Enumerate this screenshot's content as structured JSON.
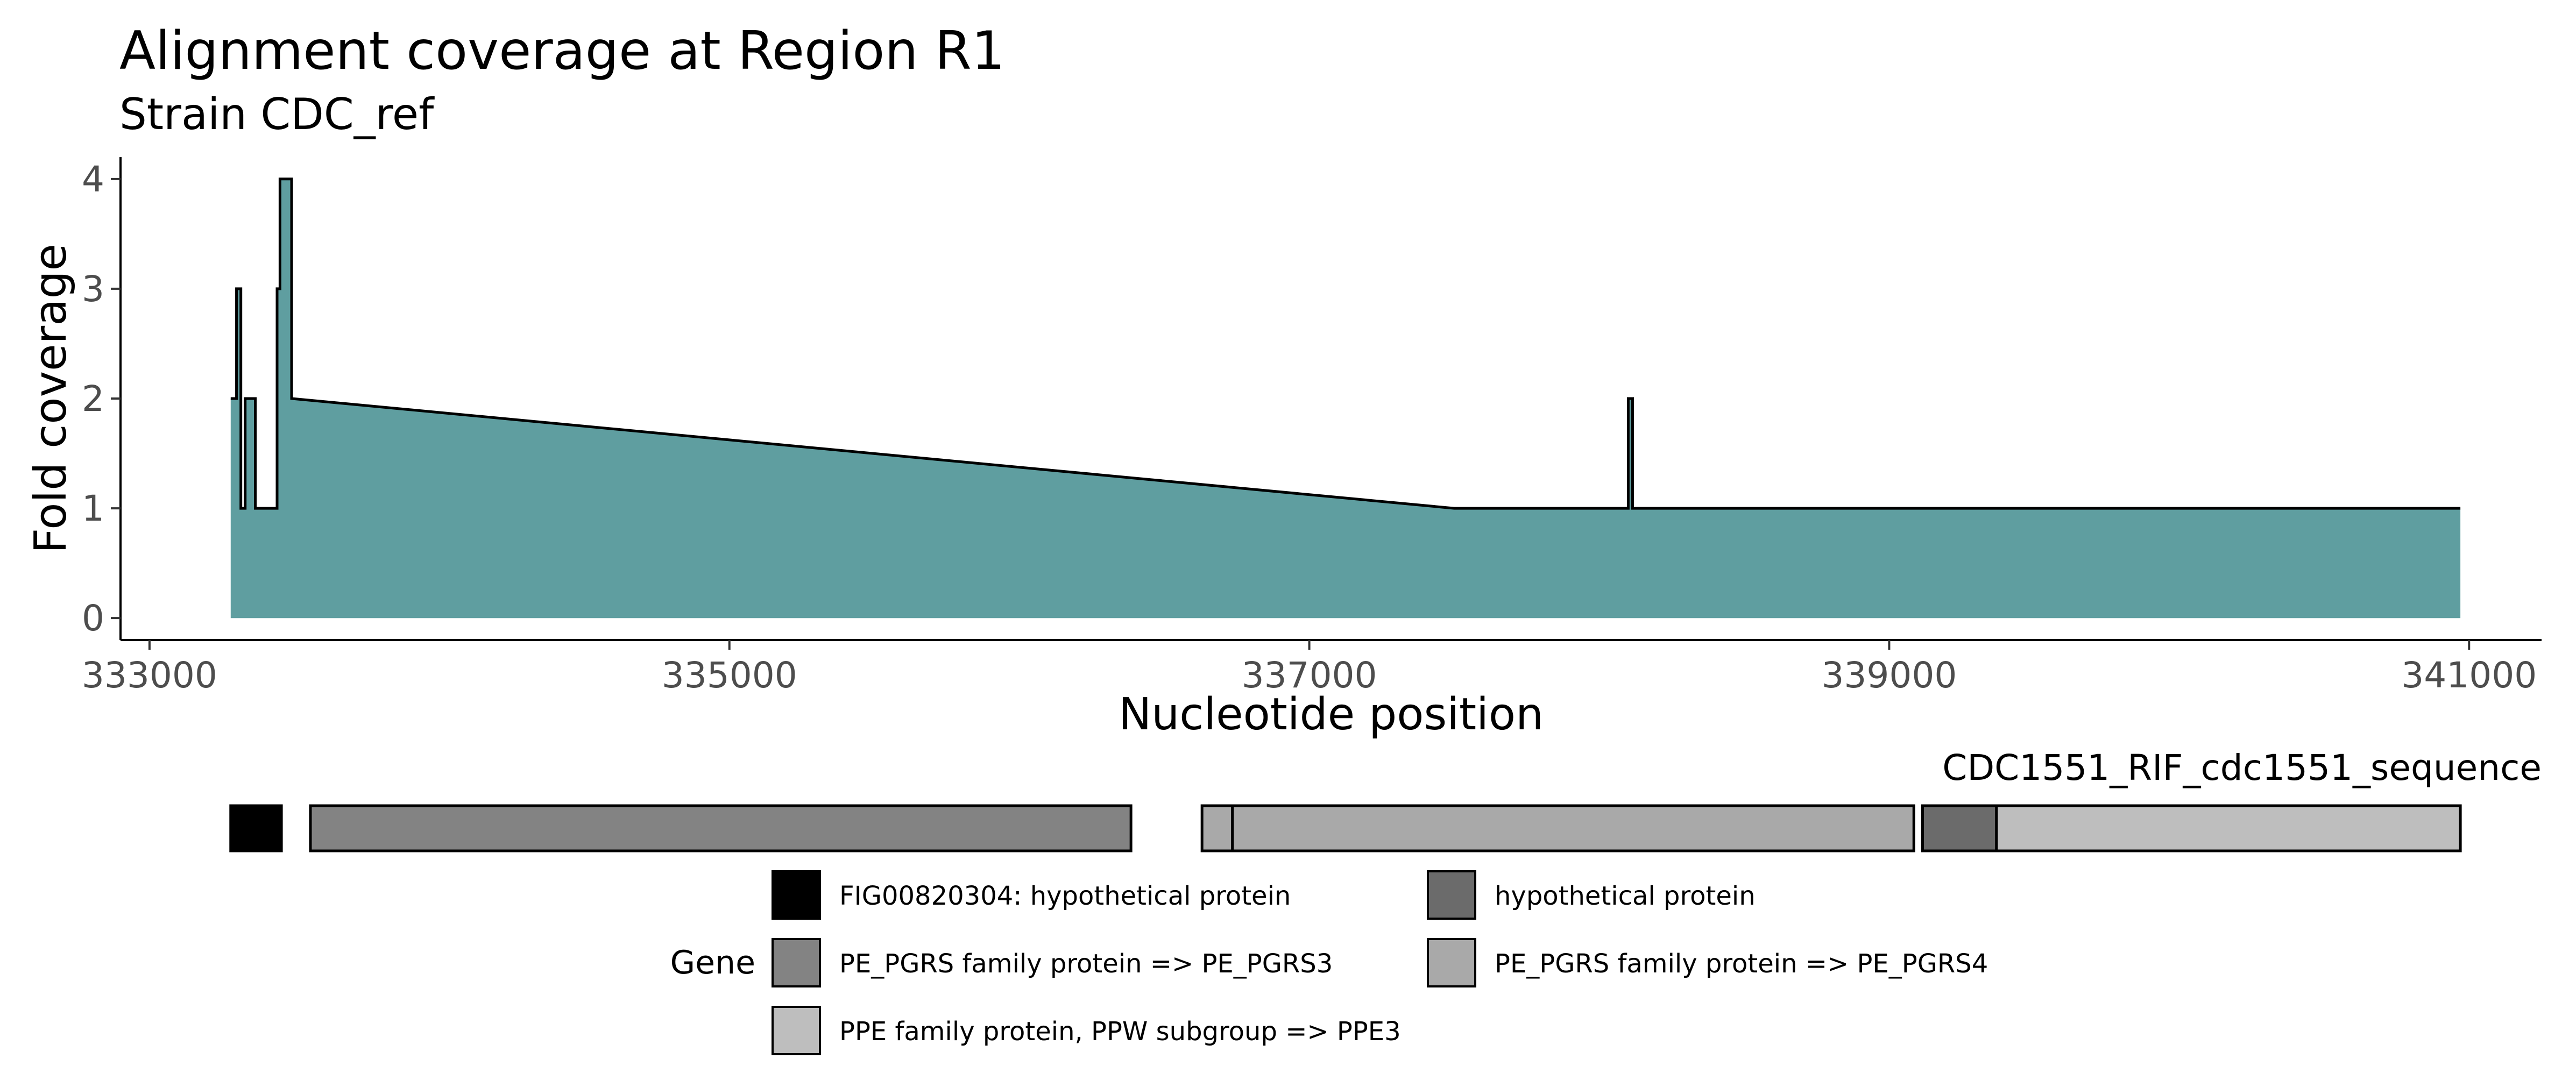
{
  "chart_data": {
    "type": "area",
    "title": "Alignment coverage at Region R1",
    "subtitle": "Strain CDC_ref",
    "xlabel": "Nucleotide position",
    "ylabel": "Fold coverage",
    "xlim": [
      332900,
      341250
    ],
    "ylim": [
      -0.2,
      4.2
    ],
    "x_ticks": [
      333000,
      335000,
      337000,
      339000,
      341000
    ],
    "y_ticks": [
      0,
      1,
      2,
      3,
      4
    ],
    "fill_color": "#5f9ea0",
    "grid": false,
    "series": [
      {
        "x": [
          333280,
          333280,
          333300,
          333300,
          333315,
          333315,
          333330,
          333330,
          333365,
          333365,
          333440,
          333440,
          333450,
          333450,
          333490,
          333490,
          337500,
          338100,
          338100,
          338115,
          338115,
          340970,
          340970
        ],
        "y": [
          0,
          2,
          2,
          3,
          3,
          1,
          1,
          2,
          2,
          1,
          1,
          3,
          3,
          4,
          4,
          2,
          1,
          1,
          2,
          2,
          1,
          1,
          0
        ]
      }
    ],
    "gene_track": {
      "label": "CDC1551_RIF_cdc1551_sequence",
      "genes": [
        {
          "start": 333280,
          "end": 333455,
          "type": "FIG00820304: hypothetical protein"
        },
        {
          "start": 333555,
          "end": 336385,
          "type": "PE_PGRS family protein => PE_PGRS3"
        },
        {
          "start": 336630,
          "end": 336735,
          "type": "PE_PGRS family protein => PE_PGRS4"
        },
        {
          "start": 336735,
          "end": 339085,
          "type": "PE_PGRS family protein => PE_PGRS4"
        },
        {
          "start": 339115,
          "end": 339370,
          "type": "hypothetical protein"
        },
        {
          "start": 339370,
          "end": 340970,
          "type": "PPE family protein, PPW subgroup => PPE3"
        }
      ]
    },
    "legend": {
      "title": "Gene",
      "position": "bottom",
      "entries": [
        {
          "label": "FIG00820304: hypothetical protein",
          "color": "#000000"
        },
        {
          "label": "hypothetical protein",
          "color": "#6b6b6b"
        },
        {
          "label": "PE_PGRS family protein => PE_PGRS3",
          "color": "#838383"
        },
        {
          "label": "PE_PGRS family protein => PE_PGRS4",
          "color": "#a9a9a9"
        },
        {
          "label": "PPE family protein, PPW subgroup => PPE3",
          "color": "#bebebe"
        }
      ]
    }
  }
}
